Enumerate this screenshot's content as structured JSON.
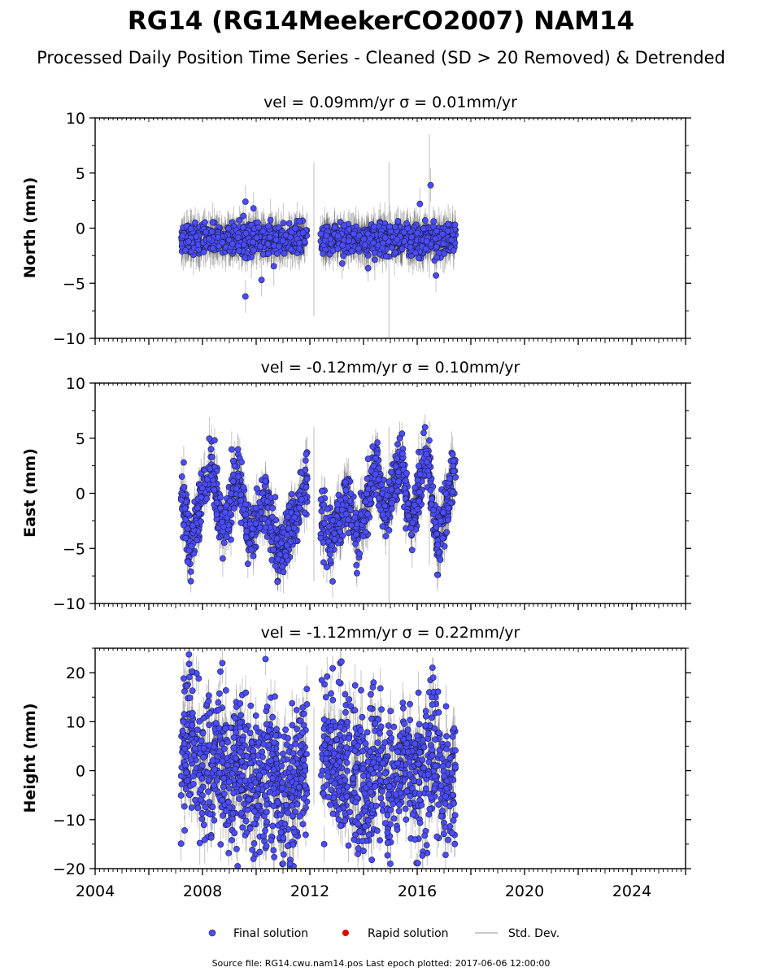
{
  "title": "RG14 (RG14MeekerCO2007) NAM14",
  "subtitle": "Processed Daily Position Time Series - Cleaned (SD > 20 Removed) & Detrended",
  "source_note": "Source file: RG14.cwu.nam14.pos  Last epoch plotted: 2017-06-06 12:00:00",
  "legend": {
    "final": "Final solution",
    "rapid": "Rapid solution",
    "std": "Std. Dev."
  },
  "colors": {
    "final": "#4b4dfa",
    "rapid": "#e00000",
    "std": "#c8c8c8"
  },
  "chart_data": [
    {
      "type": "scatter",
      "title": "vel = 0.09mm/yr   σ = 0.01mm/yr",
      "ylabel": "North (mm)",
      "xlim": [
        2004,
        2026
      ],
      "ylim": [
        -10,
        10
      ],
      "yticks": [
        "10",
        "5",
        "0",
        "−5",
        "−10"
      ],
      "xticks": [],
      "mean_pattern": [
        [
          2007.2,
          -1.0
        ],
        [
          2011.9,
          -1.0
        ],
        [
          2012.4,
          -1.0
        ],
        [
          2017.4,
          -1.0
        ]
      ],
      "outliers": [
        [
          2009.6,
          -6.2
        ],
        [
          2009.6,
          2.4
        ],
        [
          2016.5,
          3.9
        ],
        [
          2016.1,
          2.2
        ],
        [
          2016.7,
          -4.3
        ],
        [
          2010.2,
          -4.7
        ],
        [
          2009.9,
          1.8
        ]
      ],
      "gap": [
        2011.9,
        2012.4
      ],
      "series": [
        {
          "name": "Final solution",
          "x_range": [
            2007.2,
            2017.43
          ],
          "typical_range": [
            -3.5,
            1.5
          ]
        }
      ]
    },
    {
      "type": "scatter",
      "title": "vel = -0.12mm/yr   σ = 0.10mm/yr",
      "ylabel": "East (mm)",
      "xlim": [
        2004,
        2026
      ],
      "ylim": [
        -10,
        10
      ],
      "yticks": [
        "10",
        "5",
        "0",
        "−5",
        "−10"
      ],
      "xticks": [],
      "mean_pattern": [
        [
          2007.2,
          0.5
        ],
        [
          2007.55,
          -5.0
        ],
        [
          2008.0,
          0.0
        ],
        [
          2008.35,
          2.5
        ],
        [
          2008.75,
          -3.5
        ],
        [
          2009.35,
          1.5
        ],
        [
          2009.75,
          -4.5
        ],
        [
          2010.35,
          -0.5
        ],
        [
          2010.8,
          -5.5
        ],
        [
          2011.35,
          -3.0
        ],
        [
          2011.9,
          1.5
        ],
        [
          2012.4,
          -2.5
        ],
        [
          2012.75,
          -4.5
        ],
        [
          2013.4,
          -0.5
        ],
        [
          2013.8,
          -4.0
        ],
        [
          2014.5,
          2.5
        ],
        [
          2014.8,
          -2.0
        ],
        [
          2015.4,
          3.0
        ],
        [
          2015.8,
          -3.5
        ],
        [
          2016.35,
          4.0
        ],
        [
          2016.75,
          -4.5
        ],
        [
          2017.43,
          2.0
        ]
      ],
      "outliers": [
        [
          2012.85,
          -8.0
        ],
        [
          2016.75,
          -7.4
        ],
        [
          2015.35,
          5.0
        ],
        [
          2016.45,
          4.8
        ],
        [
          2007.3,
          2.8
        ]
      ],
      "gap": [
        2011.9,
        2012.4
      ],
      "series": [
        {
          "name": "Final solution",
          "x_range": [
            2007.2,
            2017.43
          ],
          "typical_range": [
            -6.5,
            3.5
          ]
        }
      ]
    },
    {
      "type": "scatter",
      "title": "vel = -1.12mm/yr   σ = 0.22mm/yr",
      "ylabel": "Height (mm)",
      "xlim": [
        2004,
        2026
      ],
      "ylim": [
        -20,
        25
      ],
      "yticks": [
        "20",
        "10",
        "0",
        "−10",
        "−20"
      ],
      "xticks": [
        "2004",
        "2008",
        "2012",
        "2016",
        "2020",
        "2024"
      ],
      "mean_pattern": [
        [
          2007.2,
          3.0
        ],
        [
          2007.6,
          7.0
        ],
        [
          2008.0,
          -2.0
        ],
        [
          2008.6,
          4.0
        ],
        [
          2009.0,
          -2.0
        ],
        [
          2009.6,
          3.0
        ],
        [
          2010.0,
          -5.0
        ],
        [
          2010.5,
          1.0
        ],
        [
          2011.0,
          -9.0
        ],
        [
          2011.5,
          -3.0
        ],
        [
          2011.9,
          3.0
        ],
        [
          2012.4,
          4.0
        ],
        [
          2013.0,
          0.0
        ],
        [
          2013.6,
          2.0
        ],
        [
          2014.0,
          -3.0
        ],
        [
          2014.6,
          1.0
        ],
        [
          2015.0,
          -4.0
        ],
        [
          2015.6,
          3.0
        ],
        [
          2016.0,
          -3.0
        ],
        [
          2016.6,
          4.0
        ],
        [
          2017.0,
          -2.0
        ],
        [
          2017.43,
          0.0
        ]
      ],
      "outliers": [
        [
          2007.5,
          21.8
        ],
        [
          2007.3,
          18.8
        ],
        [
          2015.0,
          -19.0
        ],
        [
          2009.9,
          -18.0
        ],
        [
          2016.6,
          19.0
        ],
        [
          2011.0,
          -19.0
        ],
        [
          2012.6,
          15.0
        ]
      ],
      "gap": [
        2011.9,
        2012.4
      ],
      "series": [
        {
          "name": "Final solution",
          "x_range": [
            2007.2,
            2017.43
          ],
          "typical_range": [
            -15,
            15
          ]
        }
      ]
    }
  ]
}
